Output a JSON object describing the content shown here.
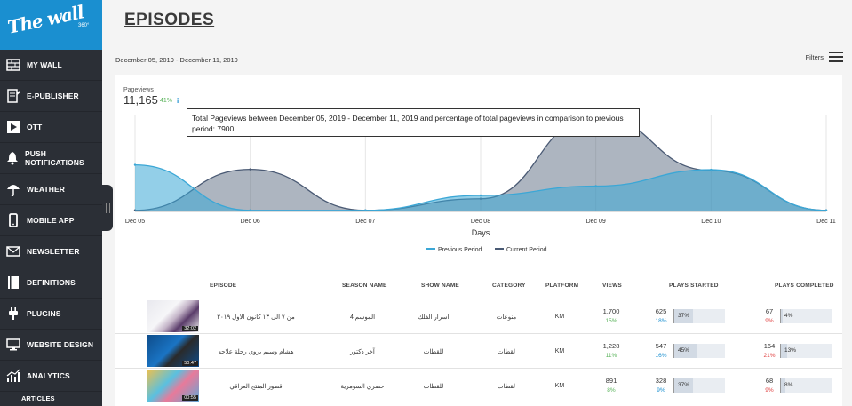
{
  "sidebar": {
    "logo_text": "The wall",
    "logo_sub": "360°",
    "items": [
      {
        "label": "MY WALL",
        "icon": "brick-wall-icon"
      },
      {
        "label": "E-PUBLISHER",
        "icon": "document-edit-icon"
      },
      {
        "label": "OTT",
        "icon": "play-screen-icon"
      },
      {
        "label": "PUSH NOTIFICATIONS",
        "icon": "bell-icon"
      },
      {
        "label": "WEATHER",
        "icon": "umbrella-icon"
      },
      {
        "label": "MOBILE APP",
        "icon": "mobile-phone-icon"
      },
      {
        "label": "NEWSLETTER",
        "icon": "newsletter-icon"
      },
      {
        "label": "DEFINITIONS",
        "icon": "book-icon"
      },
      {
        "label": "PLUGINS",
        "icon": "plug-icon"
      },
      {
        "label": "WEBSITE DESIGN",
        "icon": "monitor-icon"
      },
      {
        "label": "ANALYTICS",
        "icon": "analytics-chart-icon"
      }
    ],
    "sub_item": "ARTICLES"
  },
  "page": {
    "title": "EPISODES",
    "date_range": "December 05, 2019 - December 11, 2019",
    "filters_label": "Filters"
  },
  "summary": {
    "label": "Pageviews",
    "value": "11,165",
    "percent": "41%",
    "info_icon": "i",
    "tooltip": "Total Pageviews between December 05, 2019 - December 11, 2019 and percentage of total pageviews in comparison to previous period: 7900"
  },
  "colors": {
    "sidebar_bg": "#2b2f36",
    "brand_blue": "#1a8fd0",
    "previous_period": "#3ba7d6",
    "current_period": "#4a5a74",
    "percent_green": "#59b35a",
    "percent_blue": "#1a8fd0",
    "percent_red": "#e04040"
  },
  "chart_data": {
    "type": "area",
    "x": [
      "Dec 05",
      "Dec 06",
      "Dec 07",
      "Dec 08",
      "Dec 09",
      "Dec 10",
      "Dec 11"
    ],
    "xlabel": "Days",
    "ylabel": "",
    "series": [
      {
        "name": "Previous Period",
        "values": [
          1250,
          30,
          30,
          430,
          680,
          1120,
          30
        ],
        "color": "#3ba7d6"
      },
      {
        "name": "Current Period",
        "values": [
          30,
          1130,
          30,
          340,
          2560,
          1100,
          30
        ],
        "color": "#4a5a74"
      }
    ],
    "ylim": [
      0,
      2600
    ],
    "legend": "bottom",
    "grid": true
  },
  "table": {
    "headers": {
      "episode": "EPISODE",
      "season": "SEASON NAME",
      "show": "SHOW NAME",
      "category": "CATEGORY",
      "platform": "PLATFORM",
      "views": "VIEWS",
      "plays_started": "PLAYS STARTED",
      "plays_completed": "PLAYS COMPLETED"
    },
    "rows": [
      {
        "duration": "32:02",
        "title": "من ٧ الى ١٣ كانون الاول ٢٠١٩",
        "season": "الموسم 4",
        "show": "اسرار الفلك",
        "category": "منوعات",
        "platform": "KM",
        "views": "1,700",
        "views_pct": "15%",
        "started": "625",
        "started_pct": "18%",
        "started_bar": "37%",
        "started_bar_value": 37,
        "completed": "67",
        "completed_pct": "9%",
        "completed_bar": "4%",
        "completed_bar_value": 4
      },
      {
        "duration": "50:47",
        "title": "هشام وسيم يروي رحلة علاجه",
        "season": "آخر دكتور",
        "show": "للقطات",
        "category": "لقطات",
        "platform": "KM",
        "views": "1,228",
        "views_pct": "11%",
        "started": "547",
        "started_pct": "16%",
        "started_bar": "45%",
        "started_bar_value": 45,
        "completed": "164",
        "completed_pct": "21%",
        "completed_bar": "13%",
        "completed_bar_value": 13
      },
      {
        "duration": "00:55",
        "title": "قطور المنتج العراقي",
        "season": "حصري السومرية",
        "show": "للقطات",
        "category": "لقطات",
        "platform": "KM",
        "views": "891",
        "views_pct": "8%",
        "started": "328",
        "started_pct": "9%",
        "started_bar": "37%",
        "started_bar_value": 37,
        "completed": "68",
        "completed_pct": "9%",
        "completed_bar": "8%",
        "completed_bar_value": 8
      }
    ]
  }
}
